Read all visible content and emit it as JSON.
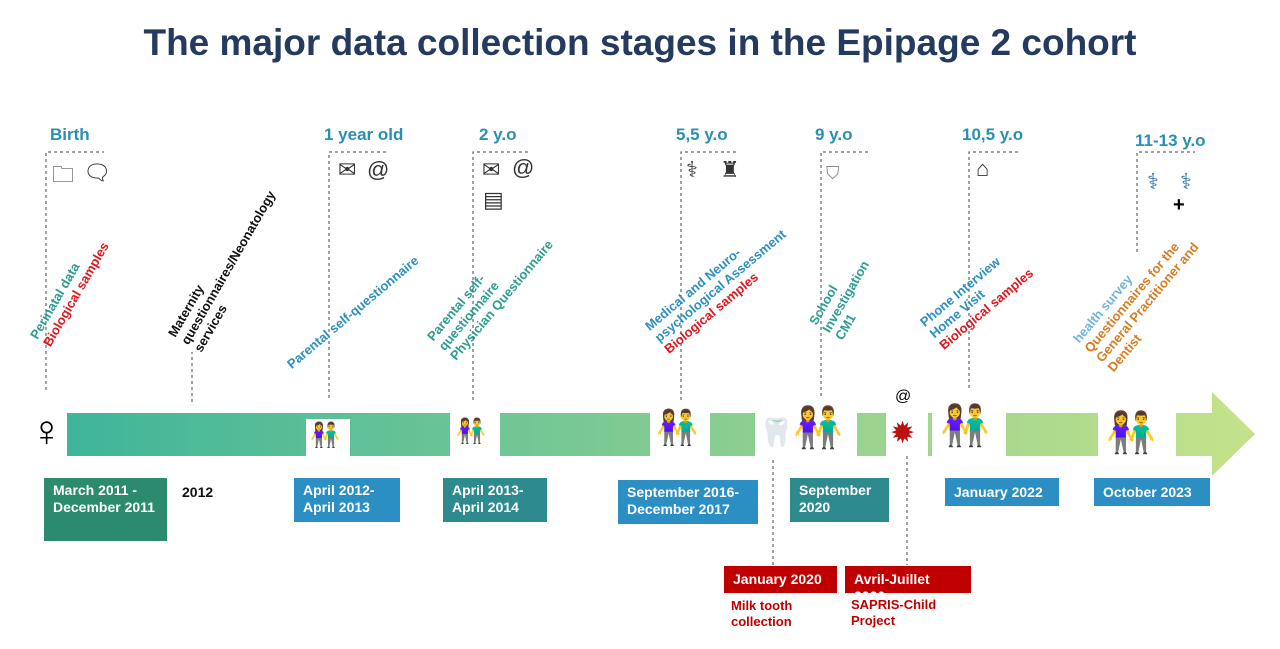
{
  "title": "The major data collection stages in the Epipage 2 cohort",
  "ages": {
    "birth": "Birth",
    "one_year": "1 year old",
    "two": "2 y.o",
    "five": "5,5 y.o",
    "nine": "9 y.o",
    "ten": "10,5 y.o",
    "eleven": "11-13 y.o"
  },
  "labels": {
    "birth": [
      "Perinatal data",
      "Biological samples"
    ],
    "maternity": [
      "Maternity",
      "questionnaires/Neonatology",
      "services"
    ],
    "one_year": [
      "Parental self-questionnaire"
    ],
    "two": [
      "Parental self-",
      "questionnaire",
      "Physician Questionnaire"
    ],
    "five": [
      "Medical and Neuro-",
      "psychological Assessment",
      "Biological samples"
    ],
    "nine": [
      "School",
      "Investigation",
      "CM1"
    ],
    "ten": [
      "Phone Interview",
      "Home Visit",
      "Biological samples"
    ],
    "eleven": [
      "health survey",
      "Questionnaires for the",
      "General Practitioner and",
      "Dentist"
    ]
  },
  "dates": {
    "d1": "March 2011 - December 2011",
    "d2": "2012",
    "d3": "April 2012- April 2013",
    "d4": "April 2013- April 2014",
    "d5": "September 2016- December 2017",
    "d6": "September 2020",
    "d7": "January 2022",
    "d8": "October 2023",
    "jan2020": "January 2020",
    "avril2020": "Avril-Juillet 2020"
  },
  "notes": {
    "milk": "Milk tooth collection",
    "sapris": "SAPRIS-Child Project"
  },
  "icons": {
    "at": "@",
    "folder": "folder-icon",
    "speech": "speech-bubble-icon",
    "envelope": "envelope-icon",
    "document": "document-icon",
    "stethoscope": "stethoscope-icon",
    "meeting": "meeting-icon",
    "backpack": "backpack-icon",
    "house": "house-icon",
    "doctor": "doctor-icon",
    "tooth": "tooth-icon",
    "virus": "virus-icon",
    "pregnant": "pregnant-woman-icon",
    "children": "children-icon"
  },
  "colors": {
    "title": "#243a5e",
    "age": "#2a8fb0",
    "arrow_start": "#3fb59a",
    "arrow_end": "#c5e28a",
    "red": "#e0161b"
  }
}
